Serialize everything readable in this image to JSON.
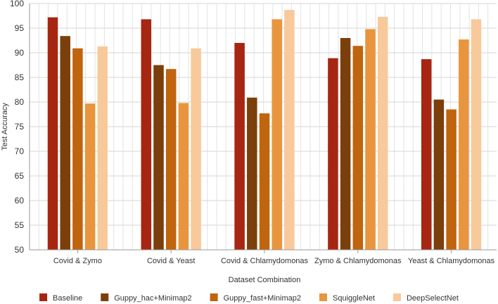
{
  "chart_data": {
    "type": "bar",
    "title": "",
    "xlabel": "Dataset Combination",
    "ylabel": "Test Accuracy",
    "ylim": [
      50,
      100
    ],
    "yticks": [
      50,
      55,
      60,
      65,
      70,
      75,
      80,
      85,
      90,
      95,
      100
    ],
    "grid": true,
    "legend_position": "bottom",
    "categories": [
      "Covid & Zymo",
      "Covid & Yeast",
      "Covid & Chlamydomonas",
      "Zymo & Chlamydomonas",
      "Yeast & Chlamydomonas"
    ],
    "series": [
      {
        "name": "Baseline",
        "color": "#a72612",
        "values": [
          97.2,
          96.8,
          92.0,
          88.9,
          88.7
        ]
      },
      {
        "name": "Guppy_hac+Minimap2",
        "color": "#7a3f0b",
        "values": [
          93.4,
          87.5,
          80.9,
          93.0,
          80.5
        ]
      },
      {
        "name": "Guppy_fast+Minimap2",
        "color": "#c0640e",
        "values": [
          90.9,
          86.7,
          77.7,
          91.4,
          78.5
        ]
      },
      {
        "name": "SquiggleNet",
        "color": "#e8953d",
        "values": [
          79.7,
          79.8,
          96.8,
          94.8,
          92.7
        ]
      },
      {
        "name": "DeepSelectNet",
        "color": "#f8c99a",
        "values": [
          91.3,
          90.9,
          98.7,
          97.3,
          96.8
        ]
      }
    ]
  }
}
